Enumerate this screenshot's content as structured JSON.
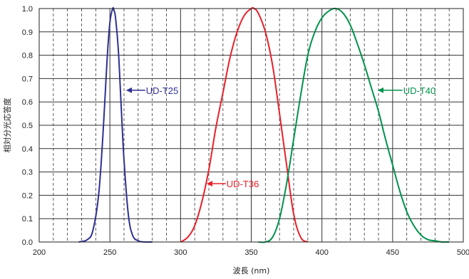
{
  "chart_data": {
    "type": "line",
    "xlabel": "波長 (nm)",
    "ylabel": "相対分光応答度",
    "xlim": [
      200,
      500
    ],
    "ylim": [
      0,
      1.0
    ],
    "x_ticks": [
      200,
      250,
      300,
      350,
      400,
      450,
      500
    ],
    "y_ticks": [
      0.0,
      0.1,
      0.2,
      0.3,
      0.4,
      0.5,
      0.6,
      0.7,
      0.8,
      0.9,
      1.0
    ],
    "y_tick_labels": [
      "0.0",
      "0.1",
      "0.2",
      "0.3",
      "0.4",
      "0.5",
      "0.6",
      "0.7",
      "0.8",
      "0.9",
      "1.0"
    ],
    "grid": {
      "major_vertical": [
        250,
        300,
        350,
        400,
        450
      ],
      "minor_vertical_dashed": [
        210,
        220,
        230,
        240,
        260,
        270,
        280,
        290,
        310,
        320,
        330,
        340,
        360,
        370,
        380,
        390,
        410,
        420,
        430,
        440,
        460,
        470,
        480,
        490
      ],
      "horizontal": [
        0.1,
        0.2,
        0.3,
        0.4,
        0.5,
        0.6,
        0.7,
        0.8,
        0.9
      ]
    },
    "series": [
      {
        "name": "UD-T25",
        "color": "#2e3192",
        "x": [
          228,
          234,
          238,
          242,
          245,
          248,
          250,
          252,
          253,
          254,
          256,
          258,
          260,
          263,
          266,
          270,
          275,
          280
        ],
        "y": [
          0.0,
          0.01,
          0.05,
          0.2,
          0.45,
          0.78,
          0.94,
          1.0,
          0.99,
          0.96,
          0.82,
          0.58,
          0.35,
          0.12,
          0.03,
          0.005,
          0.0,
          0.0
        ]
      },
      {
        "name": "UD-T36",
        "color": "#e8202a",
        "x": [
          300,
          305,
          310,
          315,
          320,
          325,
          330,
          335,
          340,
          345,
          350,
          352,
          355,
          360,
          365,
          370,
          375,
          380,
          385,
          390
        ],
        "y": [
          0.0,
          0.02,
          0.07,
          0.17,
          0.31,
          0.49,
          0.64,
          0.79,
          0.9,
          0.97,
          1.0,
          1.0,
          0.98,
          0.9,
          0.76,
          0.55,
          0.33,
          0.12,
          0.02,
          0.0
        ]
      },
      {
        "name": "UD-T40",
        "color": "#00934c",
        "x": [
          355,
          360,
          365,
          370,
          375,
          380,
          385,
          390,
          395,
          400,
          405,
          410,
          415,
          420,
          425,
          430,
          435,
          440,
          445,
          450,
          455,
          460,
          465,
          470,
          475,
          480,
          485,
          490
        ],
        "y": [
          0.0,
          0.0,
          0.02,
          0.1,
          0.25,
          0.44,
          0.63,
          0.8,
          0.9,
          0.96,
          0.99,
          1.0,
          0.98,
          0.93,
          0.85,
          0.76,
          0.66,
          0.56,
          0.44,
          0.33,
          0.22,
          0.13,
          0.07,
          0.03,
          0.01,
          0.005,
          0.0,
          0.0
        ]
      }
    ],
    "annotations": [
      {
        "text": "UD-T25",
        "series": "UD-T25",
        "arrow_from": [
          275,
          0.65
        ],
        "arrow_to": [
          262,
          0.65
        ]
      },
      {
        "text": "UD-T36",
        "series": "UD-T36",
        "arrow_from": [
          332,
          0.25
        ],
        "arrow_to": [
          319,
          0.25
        ]
      },
      {
        "text": "UD-T40",
        "series": "UD-T40",
        "arrow_from": [
          457,
          0.65
        ],
        "arrow_to": [
          440,
          0.65
        ]
      }
    ]
  }
}
